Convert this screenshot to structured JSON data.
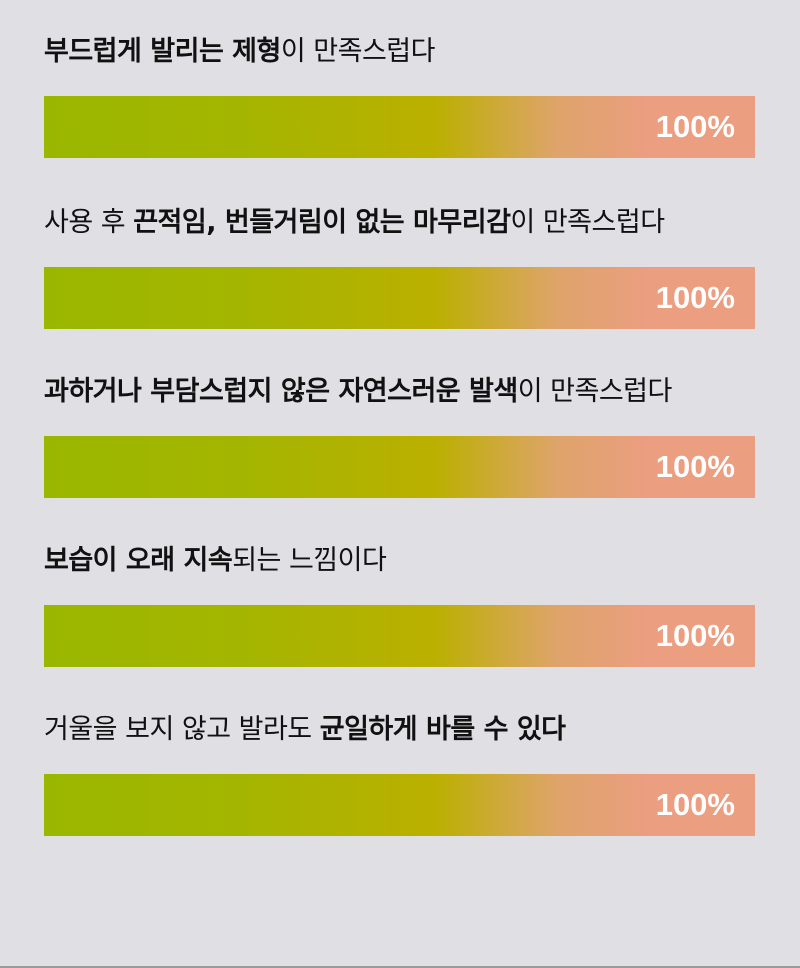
{
  "colors": {
    "background": "#e0dfe3",
    "gradient_start": "#9ab700",
    "gradient_mid": "#bbb000",
    "gradient_end": "#eb9e80",
    "value_text": "#ffffff"
  },
  "chart_data": {
    "type": "bar",
    "orientation": "horizontal",
    "xlim": [
      0,
      100
    ],
    "categories": [
      "부드럽게 발리는 제형이 만족스럽다",
      "사용 후 끈적임, 번들거림이 없는 마무리감이 만족스럽다",
      "과하거나 부담스럽지 않은 자연스러운 발색이 만족스럽다",
      "보습이 오래 지속되는 느낌이다",
      "거울을 보지 않고 발라도 균일하게 바를 수 있다"
    ],
    "values": [
      100,
      100,
      100,
      100,
      100
    ],
    "items": [
      {
        "segments": [
          {
            "text": "부드럽게 발리는 제형",
            "bold": true
          },
          {
            "text": "이 만족스럽다",
            "bold": false
          }
        ],
        "value": 100,
        "value_label": "100%"
      },
      {
        "segments": [
          {
            "text": "사용 후 ",
            "bold": false
          },
          {
            "text": "끈적임, 번들거림이 없는 마무리감",
            "bold": true
          },
          {
            "text": "이 만족스럽다",
            "bold": false
          }
        ],
        "value": 100,
        "value_label": "100%"
      },
      {
        "segments": [
          {
            "text": "과하거나 부담스럽지 않은 자연스러운 발색",
            "bold": true
          },
          {
            "text": "이 만족스럽다",
            "bold": false
          }
        ],
        "value": 100,
        "value_label": "100%"
      },
      {
        "segments": [
          {
            "text": "보습이 오래 지속",
            "bold": true
          },
          {
            "text": "되는 느낌이다",
            "bold": false
          }
        ],
        "value": 100,
        "value_label": "100%"
      },
      {
        "segments": [
          {
            "text": "거울을 보지 않고 발라도 ",
            "bold": false
          },
          {
            "text": "균일하게 바를 수 있다",
            "bold": true
          }
        ],
        "value": 100,
        "value_label": "100%"
      }
    ]
  }
}
